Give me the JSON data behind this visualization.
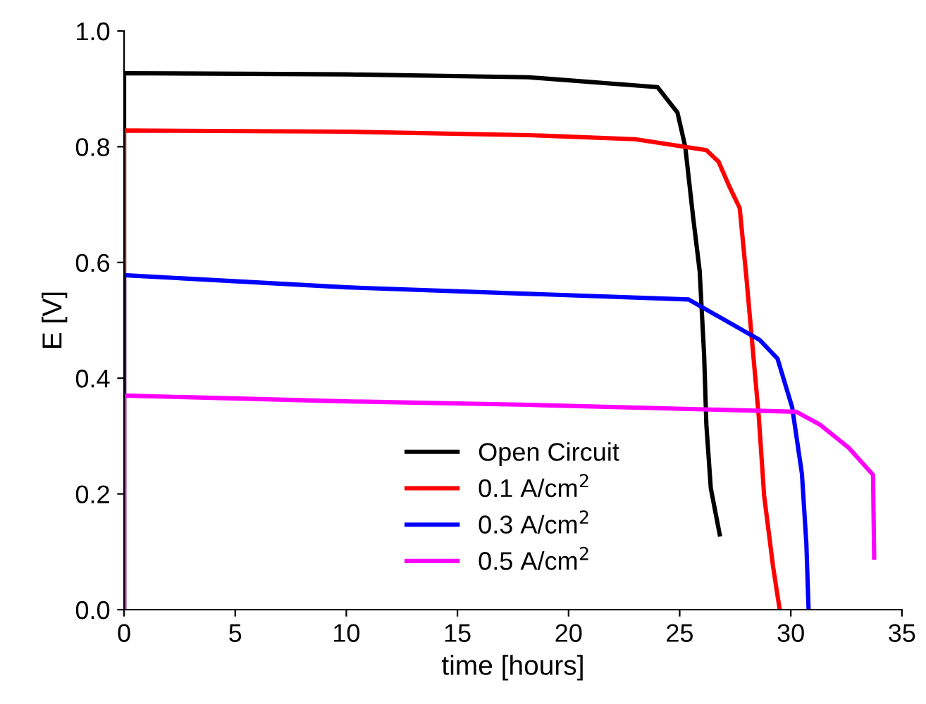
{
  "chart_data": {
    "type": "line",
    "xlabel": "time [hours]",
    "ylabel": "E [V]",
    "xlim": [
      0,
      35
    ],
    "ylim": [
      0,
      1.0
    ],
    "xticks": [
      0,
      5,
      10,
      15,
      20,
      25,
      30,
      35
    ],
    "yticks": [
      {
        "value": 0,
        "label": "0.0"
      },
      {
        "value": 0.2,
        "label": "0.2"
      },
      {
        "value": 0.4,
        "label": "0.4"
      },
      {
        "value": 0.6,
        "label": "0.6"
      },
      {
        "value": 0.8,
        "label": "0.8"
      },
      {
        "value": 1.0,
        "label": "1.0"
      }
    ],
    "grid": false,
    "legend": "bottom",
    "marker": "none",
    "line_style": "solid",
    "series": [
      {
        "name": "Open Circuit",
        "color": "#000000",
        "x": [
          0,
          0,
          10,
          18.2,
          24.0,
          24.9,
          25.25,
          25.6,
          25.9,
          26.1,
          26.2,
          26.4,
          26.8
        ],
        "values": [
          0,
          0.927,
          0.925,
          0.92,
          0.903,
          0.859,
          0.8,
          0.68,
          0.585,
          0.44,
          0.32,
          0.21,
          0.13
        ]
      },
      {
        "name": "0.1 A/cm$^{2}$",
        "color": "#ff0000",
        "x": [
          0,
          0,
          10,
          18.2,
          23,
          26.2,
          26.75,
          27.25,
          27.7,
          28.0,
          28.2,
          28.56,
          28.8,
          29.2,
          29.5
        ],
        "values": [
          0,
          0.828,
          0.826,
          0.82,
          0.813,
          0.794,
          0.774,
          0.73,
          0.694,
          0.575,
          0.488,
          0.333,
          0.197,
          0.075,
          0
        ]
      },
      {
        "name": "0.3 A/cm$^{2}$",
        "color": "#0000ff",
        "x": [
          0,
          0,
          10,
          25.4,
          28.6,
          29.4,
          30.06,
          30.5,
          30.7,
          30.8
        ],
        "values": [
          0,
          0.578,
          0.557,
          0.536,
          0.466,
          0.434,
          0.35,
          0.235,
          0.114,
          0
        ]
      },
      {
        "name": "0.5 A/cm$^{2}$",
        "color": "#ff00ff",
        "x": [
          0,
          0,
          10,
          18.2,
          30.25,
          31.3,
          32.6,
          33.7,
          33.75
        ],
        "values": [
          0,
          0.37,
          0.36,
          0.354,
          0.342,
          0.32,
          0.28,
          0.233,
          0.09
        ]
      }
    ]
  }
}
